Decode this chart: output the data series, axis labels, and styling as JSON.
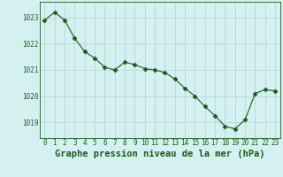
{
  "x": [
    0,
    1,
    2,
    3,
    4,
    5,
    6,
    7,
    8,
    9,
    10,
    11,
    12,
    13,
    14,
    15,
    16,
    17,
    18,
    19,
    20,
    21,
    22,
    23
  ],
  "y": [
    1022.9,
    1023.2,
    1022.9,
    1022.2,
    1021.7,
    1021.45,
    1021.1,
    1021.0,
    1021.3,
    1021.2,
    1021.05,
    1021.0,
    1020.9,
    1020.65,
    1020.3,
    1020.0,
    1019.6,
    1019.25,
    1018.85,
    1018.75,
    1019.1,
    1020.1,
    1020.25,
    1020.2
  ],
  "line_color": "#1a5c1a",
  "marker": "D",
  "marker_size": 2.5,
  "bg_color": "#d4f0f0",
  "grid_color": "#b8d8d8",
  "xlabel": "Graphe pression niveau de la mer (hPa)",
  "ylabel": "",
  "yticks": [
    1019,
    1020,
    1021,
    1022,
    1023
  ],
  "xticks": [
    0,
    1,
    2,
    3,
    4,
    5,
    6,
    7,
    8,
    9,
    10,
    11,
    12,
    13,
    14,
    15,
    16,
    17,
    18,
    19,
    20,
    21,
    22,
    23
  ],
  "xlim": [
    -0.5,
    23.5
  ],
  "ylim": [
    1018.4,
    1023.6
  ],
  "tick_fontsize": 5.5,
  "xlabel_fontsize": 7.5,
  "xlabel_fontweight": "bold"
}
